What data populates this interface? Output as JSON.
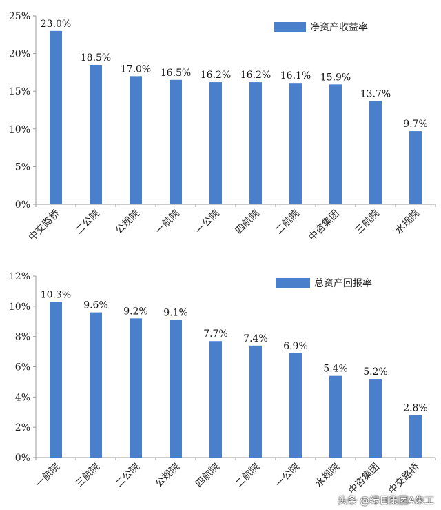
{
  "colors": {
    "bar": "#4a7fcb",
    "axis": "#999999"
  },
  "chart_data": [
    {
      "type": "bar",
      "categories": [
        "中交路桥",
        "二公院",
        "公规院",
        "一航院",
        "一公院",
        "四航院",
        "二航院",
        "中咨集团",
        "三航院",
        "水规院"
      ],
      "series": [
        {
          "name": "净资产收益率",
          "values": [
            23.0,
            18.5,
            17.0,
            16.5,
            16.2,
            16.2,
            16.1,
            15.9,
            13.7,
            9.7
          ]
        }
      ],
      "data_labels": [
        "23.0%",
        "18.5%",
        "17.0%",
        "16.5%",
        "16.2%",
        "16.2%",
        "16.1%",
        "15.9%",
        "13.7%",
        "9.7%"
      ],
      "ylim": [
        0,
        25
      ],
      "yticks": [
        0,
        5,
        10,
        15,
        20,
        25
      ],
      "ytick_labels": [
        "0%",
        "5%",
        "10%",
        "15%",
        "20%",
        "25%"
      ],
      "legend": "top-right",
      "grid": false
    },
    {
      "type": "bar",
      "categories": [
        "一航院",
        "三航院",
        "二公院",
        "公规院",
        "四航院",
        "二航院",
        "一公院",
        "水规院",
        "中咨集团",
        "中交路桥"
      ],
      "series": [
        {
          "name": "总资产回报率",
          "values": [
            10.3,
            9.6,
            9.2,
            9.1,
            7.7,
            7.4,
            6.9,
            5.4,
            5.2,
            2.8
          ]
        }
      ],
      "data_labels": [
        "10.3%",
        "9.6%",
        "9.2%",
        "9.1%",
        "7.7%",
        "7.4%",
        "6.9%",
        "5.4%",
        "5.2%",
        "2.8%"
      ],
      "ylim": [
        0,
        12
      ],
      "yticks": [
        0,
        2,
        4,
        6,
        8,
        10,
        12
      ],
      "ytick_labels": [
        "0%",
        "2%",
        "4%",
        "6%",
        "8%",
        "10%",
        "12%"
      ],
      "legend": "top-right",
      "grid": false
    }
  ],
  "watermark": "头条 @绿日集团A朱工"
}
